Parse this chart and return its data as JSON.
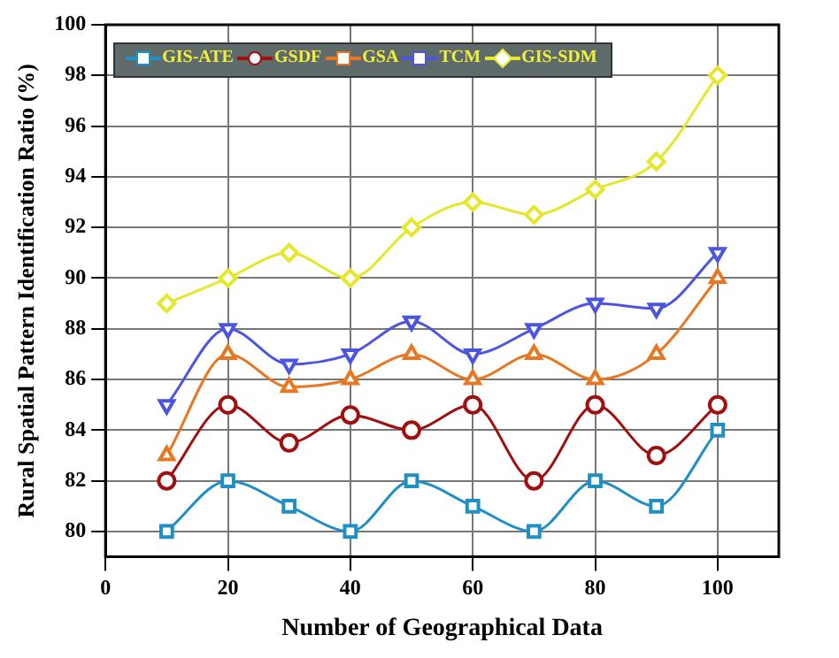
{
  "chart_data": {
    "type": "line",
    "xlabel": "Number of Geographical Data",
    "ylabel": "Rural Spatial Pattern Identification Ratio (%)",
    "x": [
      10,
      20,
      30,
      40,
      50,
      60,
      70,
      80,
      90,
      100
    ],
    "xlim": [
      0,
      110
    ],
    "xticks": [
      0,
      20,
      40,
      60,
      80,
      100
    ],
    "ylim": [
      79,
      100
    ],
    "yticks": [
      80,
      82,
      84,
      86,
      88,
      90,
      92,
      94,
      96,
      98,
      100
    ],
    "grid": true,
    "legend": "top left",
    "series": [
      {
        "name": "GIS-ATE",
        "color": "#1f8fc4",
        "marker": "square",
        "values": [
          80,
          82,
          81,
          80,
          82,
          81,
          80,
          82,
          81,
          84
        ]
      },
      {
        "name": "GSDF",
        "color": "#a01010",
        "marker": "circle",
        "values": [
          82,
          85,
          83.5,
          84.6,
          84,
          85,
          82,
          85,
          83,
          85
        ]
      },
      {
        "name": "GSA",
        "color": "#e87722",
        "marker": "triangle",
        "values": [
          83,
          87,
          85.7,
          86,
          87,
          86,
          87,
          86,
          87,
          90
        ]
      },
      {
        "name": "TCM",
        "color": "#4b55e0",
        "marker": "triangle-down",
        "values": [
          85,
          88,
          86.6,
          87,
          88.3,
          87,
          88,
          89,
          88.8,
          91
        ]
      },
      {
        "name": "GIS-SDM",
        "color": "#e6e62a",
        "marker": "diamond",
        "values": [
          89,
          90,
          91,
          90,
          92,
          93,
          92.5,
          93.5,
          94.6,
          98
        ]
      }
    ]
  }
}
